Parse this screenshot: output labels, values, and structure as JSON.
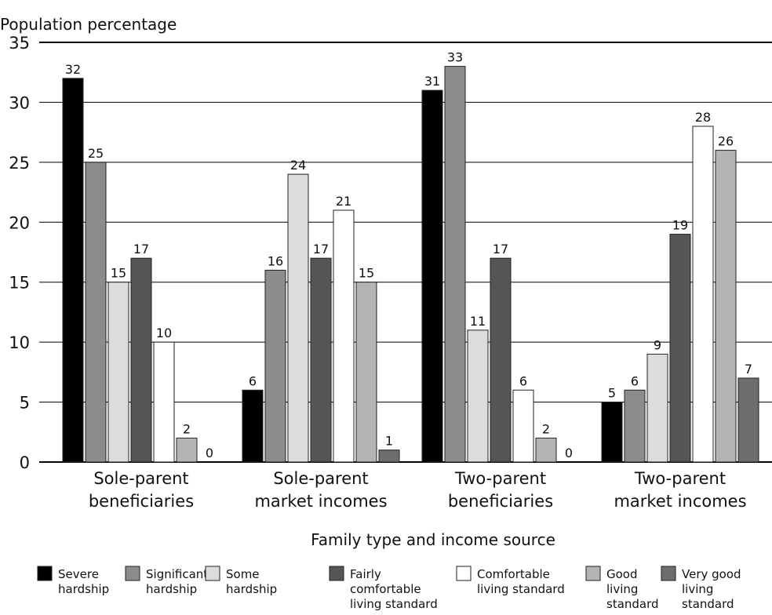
{
  "chart_data": {
    "type": "bar",
    "title": "",
    "ylabel": "Population percentage",
    "xlabel": "Family type and income source",
    "ylim": [
      0,
      35
    ],
    "yticks": [
      0,
      5,
      10,
      15,
      20,
      25,
      30,
      35
    ],
    "grid": true,
    "legend_position": "bottom",
    "categories": [
      [
        "Sole-parent",
        "beneficiaries"
      ],
      [
        "Sole-parent",
        "market incomes"
      ],
      [
        "Two-parent",
        "beneficiaries"
      ],
      [
        "Two-parent",
        "market incomes"
      ]
    ],
    "series": [
      {
        "name": "Severe hardship",
        "legend_lines": [
          "Severe",
          "hardship"
        ],
        "color": "#000000",
        "values": [
          32,
          6,
          31,
          5
        ]
      },
      {
        "name": "Significant hardship",
        "legend_lines": [
          "Significant",
          "hardship"
        ],
        "color": "#8c8c8c",
        "values": [
          25,
          16,
          33,
          6
        ]
      },
      {
        "name": "Some hardship",
        "legend_lines": [
          "Some",
          "hardship"
        ],
        "color": "#dcdcdc",
        "values": [
          15,
          24,
          11,
          9
        ]
      },
      {
        "name": "Fairly comfortable living standard",
        "legend_lines": [
          "Fairly",
          "comfortable",
          "living standard"
        ],
        "color": "#555555",
        "values": [
          17,
          17,
          17,
          19
        ]
      },
      {
        "name": "Comfortable living standard",
        "legend_lines": [
          "Comfortable",
          "living standard"
        ],
        "color": "#ffffff",
        "values": [
          10,
          21,
          6,
          28
        ]
      },
      {
        "name": "Good living standard",
        "legend_lines": [
          "Good",
          "living",
          "standard"
        ],
        "color": "#b4b4b4",
        "values": [
          2,
          15,
          2,
          26
        ]
      },
      {
        "name": "Very good living standard",
        "legend_lines": [
          "Very good",
          "living",
          "standard"
        ],
        "color": "#6e6e6e",
        "values": [
          0,
          1,
          0,
          7
        ]
      }
    ]
  }
}
